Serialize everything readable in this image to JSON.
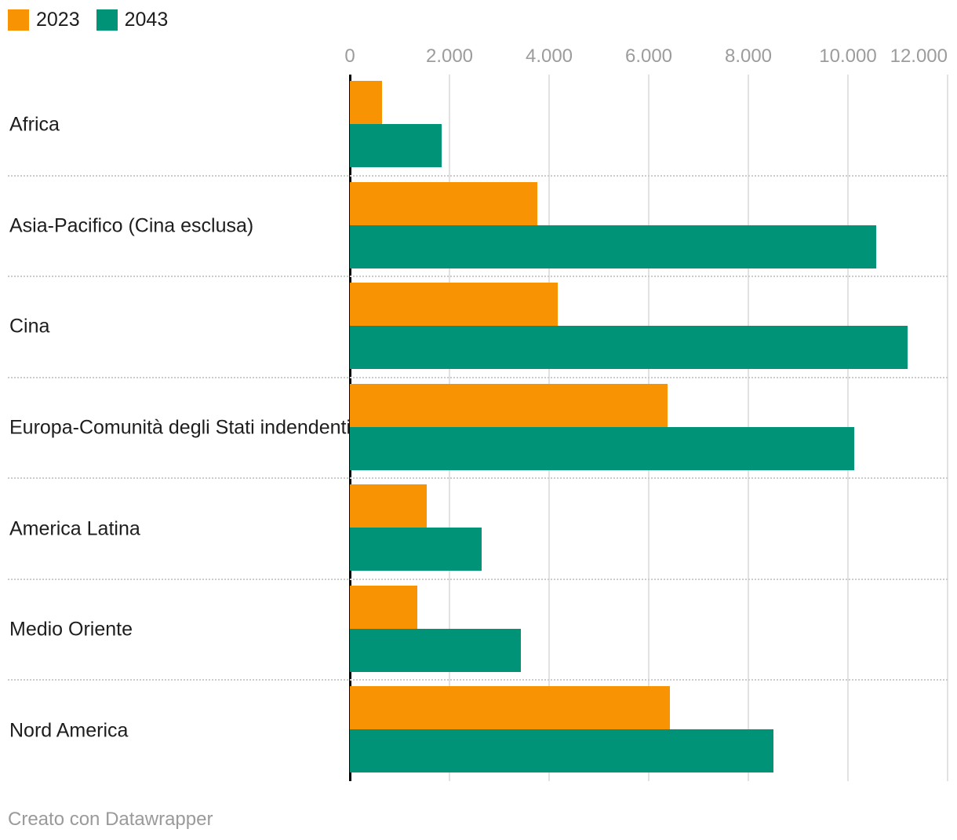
{
  "legend": {
    "items": [
      {
        "label": "2023",
        "color": "#f89303"
      },
      {
        "label": "2043",
        "color": "#009377"
      }
    ]
  },
  "chart_data": {
    "type": "bar",
    "orientation": "horizontal",
    "title": "",
    "categories": [
      "Africa",
      "Asia-Pacifico (Cina esclusa)",
      "Cina",
      "Europa-Comunità degli Stati indendenti",
      "America Latina",
      "Medio Oriente",
      "Nord America"
    ],
    "series": [
      {
        "name": "2023",
        "color": "#f89303",
        "values": [
          650,
          3760,
          4170,
          6380,
          1540,
          1350,
          6420
        ]
      },
      {
        "name": "2043",
        "color": "#009377",
        "values": [
          1850,
          10570,
          11200,
          10130,
          2650,
          3440,
          8500
        ]
      }
    ],
    "xlim": [
      0,
      12000
    ],
    "x_ticks": [
      {
        "value": 0,
        "label": "0"
      },
      {
        "value": 2000,
        "label": "2.000"
      },
      {
        "value": 4000,
        "label": "4.000"
      },
      {
        "value": 6000,
        "label": "6.000"
      },
      {
        "value": 8000,
        "label": "8.000"
      },
      {
        "value": 10000,
        "label": "10.000"
      },
      {
        "value": 12000,
        "label": "12.000"
      }
    ],
    "grid": true,
    "legend_position": "top-left"
  },
  "footer": {
    "credit": "Creato con Datawrapper"
  },
  "colors": {
    "background": "#ffffff",
    "text_dark": "#1d1d1d",
    "axis_text": "#9c9c9c",
    "gridline": "#e2e2e2",
    "separator": "#cccccc",
    "axis_line": "#000000",
    "credit_text": "#9a9a9a"
  }
}
